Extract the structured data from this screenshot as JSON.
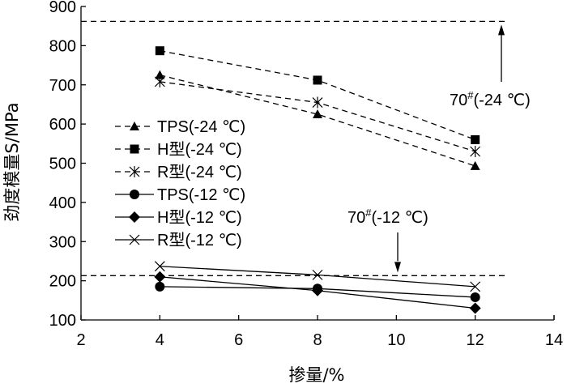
{
  "chart_data": {
    "type": "line",
    "xlabel": "掺量/%",
    "ylabel": "劲度模量S/MPa",
    "xlim": [
      2,
      14
    ],
    "ylim": [
      100,
      900
    ],
    "x_ticks": [
      "2",
      "4",
      "6",
      "8",
      "10",
      "12",
      "14"
    ],
    "y_ticks": [
      "100",
      "200",
      "300",
      "400",
      "500",
      "600",
      "700",
      "800",
      "900"
    ],
    "grid": false,
    "legend_position": "left-center",
    "x": [
      4,
      8,
      12
    ],
    "series": [
      {
        "name": "TPS(-24 ℃)",
        "values": [
          725,
          625,
          493
        ],
        "marker": "triangle",
        "line": "dashed"
      },
      {
        "name": "H型(-24 ℃)",
        "values": [
          787,
          712,
          560
        ],
        "marker": "square",
        "line": "dashed"
      },
      {
        "name": "R型(-24 ℃)",
        "values": [
          708,
          655,
          530
        ],
        "marker": "asterisk",
        "line": "dashed"
      },
      {
        "name": "TPS(-12 ℃)",
        "values": [
          185,
          180,
          158
        ],
        "marker": "circle",
        "line": "solid"
      },
      {
        "name": "H型(-12 ℃)",
        "values": [
          210,
          175,
          130
        ],
        "marker": "diamond",
        "line": "solid"
      },
      {
        "name": "R型(-12 ℃)",
        "values": [
          237,
          215,
          185
        ],
        "marker": "cross",
        "line": "solid"
      }
    ],
    "reference_lines": [
      {
        "value": 862,
        "style": "dashed",
        "label_base": "70",
        "label_sup": "#",
        "label_rest": "(-24 ℃)"
      },
      {
        "value": 213,
        "style": "dashed",
        "label_base": "70",
        "label_sup": "#",
        "label_rest": "(-12 ℃)"
      }
    ]
  }
}
